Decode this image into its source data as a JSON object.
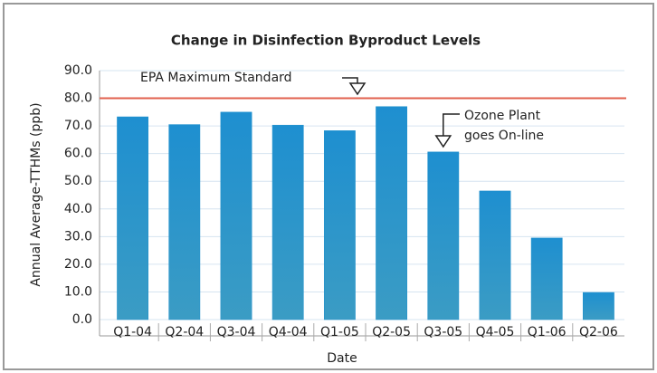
{
  "chart_data": {
    "type": "bar",
    "title": "Change in Disinfection Byproduct Levels",
    "x_label": "Date",
    "y_label": "Annual Average-TTHMs (ppb)",
    "categories": [
      "Q1-04",
      "Q2-04",
      "Q3-04",
      "Q4-04",
      "Q1-05",
      "Q2-05",
      "Q3-05",
      "Q4-05",
      "Q1-06",
      "Q2-06"
    ],
    "values": [
      73.3,
      70.5,
      75,
      70.3,
      68.3,
      77,
      60.6,
      46.5,
      29.5,
      9.8
    ],
    "color": "#1e90cc",
    "ylim": [
      0,
      90
    ],
    "yticks": [
      {
        "value": 0,
        "label": "0.0"
      },
      {
        "value": 10,
        "label": "10.0"
      },
      {
        "value": 20,
        "label": "20.0"
      },
      {
        "value": 30,
        "label": "30.0"
      },
      {
        "value": 40,
        "label": "40.0"
      },
      {
        "value": 50,
        "label": "50.0"
      },
      {
        "value": 60,
        "label": "60.0"
      },
      {
        "value": 70,
        "label": "70.0"
      },
      {
        "value": 80,
        "label": "80.0"
      },
      {
        "value": 90,
        "label": "90.0"
      }
    ],
    "grid": true,
    "reference_line": {
      "value": 80,
      "label": "EPA Maximum Standard",
      "color": "#e2604e"
    },
    "annotation": {
      "lines": [
        "Ozone Plant",
        "goes On-line"
      ]
    }
  }
}
